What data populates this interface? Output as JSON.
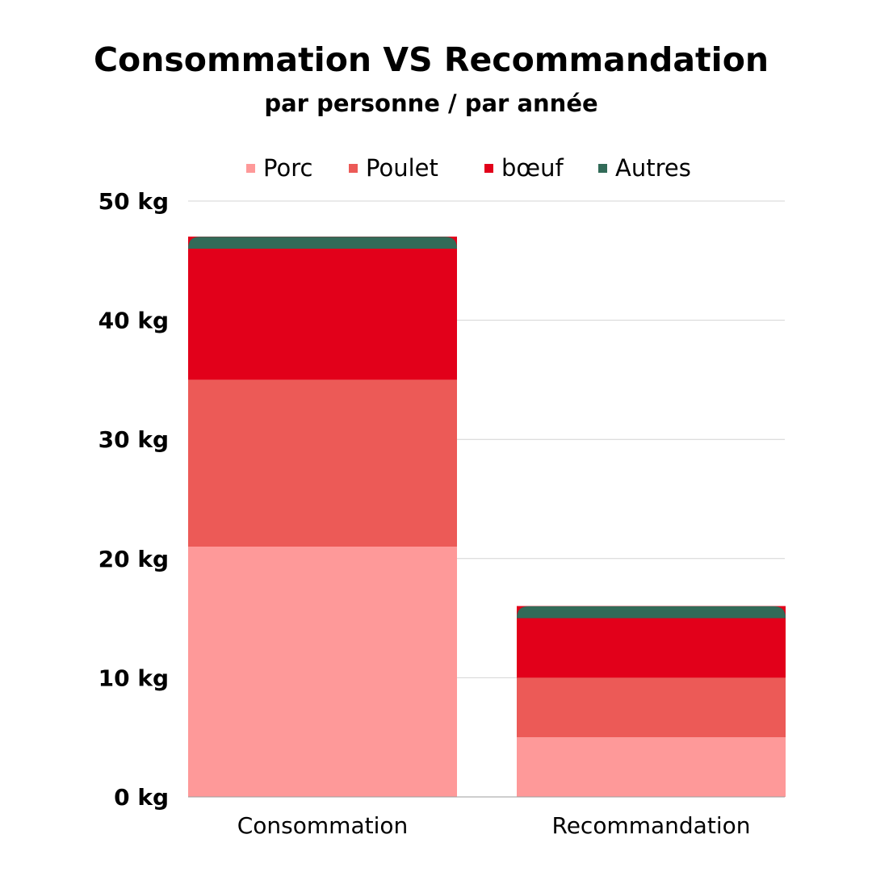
{
  "colors": {
    "porc": "#fe9999",
    "poulet": "#ec5a57",
    "boeuf": "#e2001a",
    "autres": "#326b58",
    "gridline": "#d4d4d4",
    "baseline": "#9e9e9e"
  },
  "chart_data": {
    "type": "bar",
    "stacked": true,
    "title": "Consommation VS Recommandation",
    "subtitle": "par personne / par année",
    "xlabel": "",
    "ylabel": "",
    "unit": "kg",
    "categories": [
      "Consommation",
      "Recommandation"
    ],
    "series": [
      {
        "name": "Porc",
        "color": "#fe9999",
        "values": [
          21,
          5
        ]
      },
      {
        "name": "Poulet",
        "color": "#ec5a57",
        "values": [
          14,
          5
        ]
      },
      {
        "name": "bœuf",
        "color": "#e2001a",
        "values": [
          11,
          5
        ]
      },
      {
        "name": "Autres",
        "color": "#326b58",
        "values": [
          1,
          1
        ]
      }
    ],
    "ylim": [
      0,
      50
    ],
    "yticks": [
      0,
      10,
      20,
      30,
      40,
      50
    ],
    "ytick_labels": [
      "0 kg",
      "10 kg",
      "20 kg",
      "30 kg",
      "40 kg",
      "50 kg"
    ],
    "grid": true,
    "legend_position": "top"
  }
}
